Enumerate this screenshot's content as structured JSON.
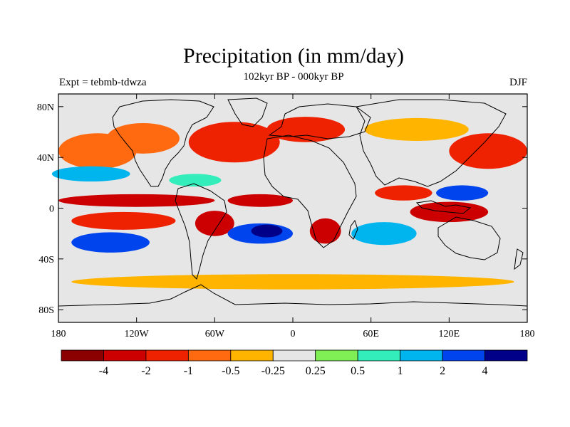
{
  "chart_data": {
    "type": "heatmap",
    "title": "Precipitation (in mm/day)",
    "subtitle": "102kyr BP - 000kyr BP",
    "left_label": "Expt = tebmb-tdwza",
    "right_label": "DJF",
    "x_range": [
      -180,
      180
    ],
    "y_range": [
      -90,
      90
    ],
    "y_ticks": [
      {
        "value": 80,
        "label": "80N"
      },
      {
        "value": 40,
        "label": "40N"
      },
      {
        "value": 0,
        "label": "0"
      },
      {
        "value": -40,
        "label": "40S"
      },
      {
        "value": -80,
        "label": "80S"
      }
    ],
    "x_ticks": [
      {
        "value": -180,
        "label": "180"
      },
      {
        "value": -120,
        "label": "120W"
      },
      {
        "value": -60,
        "label": "60W"
      },
      {
        "value": 0,
        "label": "0"
      },
      {
        "value": 60,
        "label": "60E"
      },
      {
        "value": 120,
        "label": "120E"
      },
      {
        "value": 180,
        "label": "180"
      }
    ],
    "colorbar": {
      "colors": [
        "#8b0000",
        "#cc0000",
        "#ee2200",
        "#ff6a10",
        "#ffb400",
        "#e6e6e6",
        "#80ee55",
        "#33eebb",
        "#00b4ee",
        "#0044ee",
        "#000088"
      ],
      "labels": [
        "-4",
        "-2",
        "-1",
        "-0.5",
        "-0.25",
        "0.25",
        "0.5",
        "1",
        "2",
        "4"
      ]
    },
    "background_color": "#e6e6e6",
    "regions": [
      {
        "name": "north-pacific-drying",
        "cx": -150,
        "cy": 45,
        "rx": 30,
        "ry": 14,
        "level": -0.5
      },
      {
        "name": "north-america-drying",
        "cx": -115,
        "cy": 55,
        "rx": 28,
        "ry": 12,
        "level": -0.5
      },
      {
        "name": "north-atlantic-drying",
        "cx": -45,
        "cy": 52,
        "rx": 35,
        "ry": 16,
        "level": -1
      },
      {
        "name": "europe-drying",
        "cx": 10,
        "cy": 62,
        "rx": 30,
        "ry": 10,
        "level": -1
      },
      {
        "name": "siberia-drying",
        "cx": 95,
        "cy": 62,
        "rx": 40,
        "ry": 9,
        "level": -0.25
      },
      {
        "name": "nw-pacific-drying",
        "cx": 150,
        "cy": 45,
        "rx": 30,
        "ry": 14,
        "level": -1
      },
      {
        "name": "east-pacific-subtrop-wet",
        "cx": -155,
        "cy": 27,
        "rx": 30,
        "ry": 6,
        "level": 1
      },
      {
        "name": "gulf-mexico-wet",
        "cx": -75,
        "cy": 22,
        "rx": 20,
        "ry": 5,
        "level": 0.5
      },
      {
        "name": "itcz-pacific-drying",
        "cx": -120,
        "cy": 6,
        "rx": 60,
        "ry": 5,
        "level": -2
      },
      {
        "name": "itcz-atlantic-drying",
        "cx": -25,
        "cy": 6,
        "rx": 25,
        "ry": 5,
        "level": -2
      },
      {
        "name": "south-pacific-drying",
        "cx": -130,
        "cy": -10,
        "rx": 40,
        "ry": 7,
        "level": -1
      },
      {
        "name": "south-america-drying",
        "cx": -60,
        "cy": -12,
        "rx": 15,
        "ry": 10,
        "level": -2
      },
      {
        "name": "spcz-wet",
        "cx": -140,
        "cy": -27,
        "rx": 30,
        "ry": 8,
        "level": 2
      },
      {
        "name": "south-atlantic-wet",
        "cx": -25,
        "cy": -20,
        "rx": 25,
        "ry": 8,
        "level": 2
      },
      {
        "name": "south-atlantic-core-wet",
        "cx": -20,
        "cy": -18,
        "rx": 12,
        "ry": 5,
        "level": 4
      },
      {
        "name": "southern-africa-drying",
        "cx": 25,
        "cy": -18,
        "rx": 12,
        "ry": 10,
        "level": -2
      },
      {
        "name": "indian-ocean-wet",
        "cx": 70,
        "cy": -20,
        "rx": 25,
        "ry": 9,
        "level": 1
      },
      {
        "name": "indian-monsoon-drying",
        "cx": 85,
        "cy": 12,
        "rx": 22,
        "ry": 6,
        "level": -1
      },
      {
        "name": "maritime-continent-drying",
        "cx": 120,
        "cy": -3,
        "rx": 30,
        "ry": 8,
        "level": -2
      },
      {
        "name": "west-pacific-wet",
        "cx": 130,
        "cy": 12,
        "rx": 20,
        "ry": 6,
        "level": 2
      },
      {
        "name": "southern-ocean-drying",
        "cx": 0,
        "cy": -58,
        "rx": 170,
        "ry": 6,
        "level": -0.25
      }
    ]
  }
}
